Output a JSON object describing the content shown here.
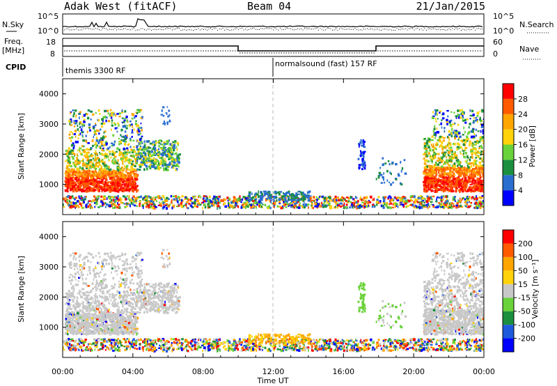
{
  "header": {
    "station": "Adak West (fitACF)",
    "beam": "Beam 04",
    "date": "21/Jan/2015"
  },
  "noise_panel": {
    "left_label": "N.Sky",
    "right_label": "N.Search",
    "left_ticks": [
      "10^5",
      "10^0"
    ],
    "right_ticks": [
      "10^5",
      "10^0"
    ]
  },
  "freq_panel": {
    "left_label_1": "Freq.",
    "left_label_2": "[MHz]",
    "left_ticks": [
      "18",
      "8"
    ],
    "right_label": "Nave",
    "right_ticks": [
      "60",
      "0"
    ]
  },
  "cpid_panel": {
    "label": "CPID",
    "modes": [
      "themis 3300 RF",
      "normalsound (fast) 157 RF"
    ]
  },
  "power_panel": {
    "ylabel": "Slant Range [km]",
    "yticks": [
      "4000",
      "3000",
      "2000",
      "1000"
    ],
    "colorbar_label": "Power [dB]",
    "colorbar_ticks": [
      "28",
      "24",
      "20",
      "16",
      "12",
      "8",
      "4"
    ],
    "colors": [
      "#0000ff",
      "#2a6ed0",
      "#1c8f3e",
      "#6ad23a",
      "#ffd20a",
      "#ffa500",
      "#ff5a00",
      "#ff0000"
    ]
  },
  "velocity_panel": {
    "ylabel": "Slant Range [km]",
    "yticks": [
      "4000",
      "3000",
      "2000",
      "1000"
    ],
    "colorbar_label": "Velocity [m s⁻¹]",
    "colorbar_ticks": [
      "200",
      "100",
      "50",
      "15",
      "-15",
      "-50",
      "-100",
      "-200"
    ],
    "colors": [
      "#0000ff",
      "#1e5adc",
      "#1c8f3e",
      "#6ad23a",
      "#c8c8c8",
      "#ffd20a",
      "#ffa500",
      "#ff5a00",
      "#ff0000"
    ]
  },
  "xaxis": {
    "label": "Time UT",
    "ticks": [
      "00:00",
      "04:00",
      "08:00",
      "12:00",
      "16:00",
      "20:00",
      "00:00"
    ]
  },
  "chart_data": {
    "type": "heatmap",
    "title": "Adak West (fitACF) Beam 04 21/Jan/2015",
    "xlabel": "Time UT",
    "ylabel": "Slant Range [km]",
    "xlim": [
      "00:00",
      "24:00"
    ],
    "ylim": [
      0,
      4500
    ],
    "modes": [
      {
        "name": "themis 3300 RF",
        "start": "00:00",
        "end": "12:00"
      },
      {
        "name": "normalsound (fast) 157 RF",
        "start": "12:00",
        "end": "24:00"
      }
    ],
    "frequency_mhz": [
      {
        "start": "00:00",
        "end": "10:00",
        "value": 14
      },
      {
        "start": "10:00",
        "end": "18:00",
        "value": 9
      },
      {
        "start": "18:00",
        "end": "24:00",
        "value": 14
      }
    ],
    "power_range_db": [
      0,
      30
    ],
    "velocity_range_ms": [
      -200,
      200
    ]
  }
}
